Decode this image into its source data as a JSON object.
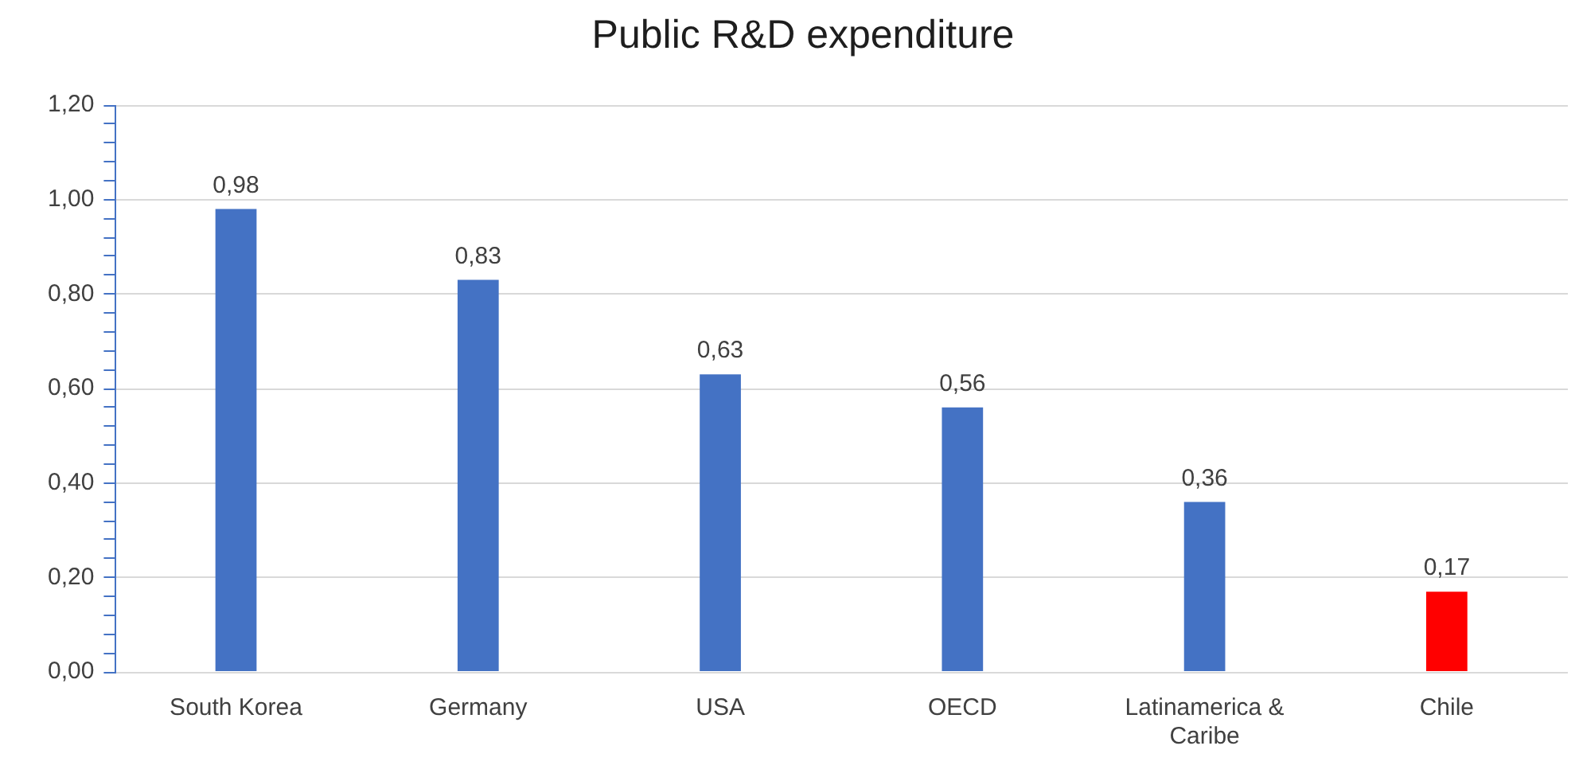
{
  "chart_data": {
    "type": "bar",
    "title": "Public R&D expenditure",
    "categories": [
      "South Korea",
      "Germany",
      "USA",
      "OECD",
      "Latinamerica & Caribe",
      "Chile"
    ],
    "values": [
      0.98,
      0.83,
      0.63,
      0.56,
      0.36,
      0.17
    ],
    "colors": [
      "#4472c4",
      "#4472c4",
      "#4472c4",
      "#4472c4",
      "#4472c4",
      "#ff0000"
    ],
    "value_labels": [
      "0,98",
      "0,83",
      "0,63",
      "0,56",
      "0,36",
      "0,17"
    ],
    "ylim": [
      0,
      1.2
    ],
    "yticks": [
      {
        "value": 0,
        "label": "0,00"
      },
      {
        "value": 0.04,
        "label": null
      },
      {
        "value": 0.08,
        "label": null
      },
      {
        "value": 0.12,
        "label": null
      },
      {
        "value": 0.16,
        "label": null
      },
      {
        "value": 0.2,
        "label": "0,20"
      },
      {
        "value": 0.24,
        "label": null
      },
      {
        "value": 0.28,
        "label": null
      },
      {
        "value": 0.32,
        "label": null
      },
      {
        "value": 0.36,
        "label": null
      },
      {
        "value": 0.4,
        "label": "0,40"
      },
      {
        "value": 0.44,
        "label": null
      },
      {
        "value": 0.48,
        "label": null
      },
      {
        "value": 0.52,
        "label": null
      },
      {
        "value": 0.56,
        "label": null
      },
      {
        "value": 0.6,
        "label": "0,60"
      },
      {
        "value": 0.64,
        "label": null
      },
      {
        "value": 0.68,
        "label": null
      },
      {
        "value": 0.72,
        "label": null
      },
      {
        "value": 0.76,
        "label": null
      },
      {
        "value": 0.8,
        "label": "0,80"
      },
      {
        "value": 0.84,
        "label": null
      },
      {
        "value": 0.88,
        "label": null
      },
      {
        "value": 0.92,
        "label": null
      },
      {
        "value": 0.96,
        "label": null
      },
      {
        "value": 1,
        "label": "1,00"
      },
      {
        "value": 1.04,
        "label": null
      },
      {
        "value": 1.08,
        "label": null
      },
      {
        "value": 1.12,
        "label": null
      },
      {
        "value": 1.16,
        "label": null
      },
      {
        "value": 1.2,
        "label": "1,20"
      }
    ],
    "grid": "y"
  }
}
